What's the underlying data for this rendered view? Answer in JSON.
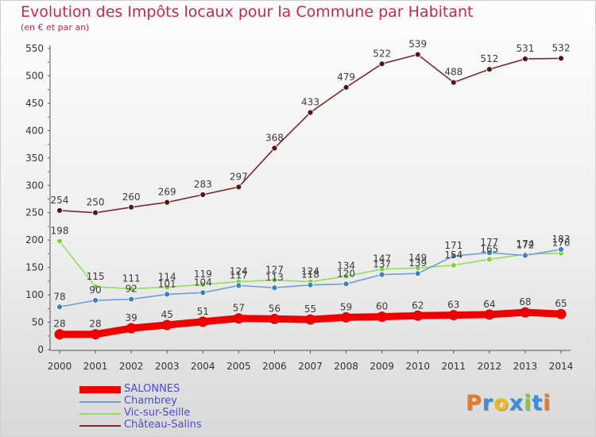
{
  "title": "Evolution des Impôts locaux pour la Commune par Habitant",
  "subtitle": "(en € et par an)",
  "logo": {
    "letters": [
      "P",
      "r",
      "o",
      "x",
      "i",
      "t",
      "i"
    ],
    "colors": [
      "#e8782a",
      "#3a8fd9",
      "#f0b81c",
      "#3a8fd9",
      "#8bc63e",
      "#3a8fd9",
      "#e8782a"
    ]
  },
  "chart_data": {
    "type": "line",
    "title": "Evolution des Impôts locaux pour la Commune par Habitant",
    "subtitle": "(en € et par an)",
    "xlabel": "",
    "ylabel": "",
    "x": [
      2000,
      2001,
      2002,
      2003,
      2004,
      2005,
      2006,
      2007,
      2008,
      2009,
      2010,
      2011,
      2012,
      2013,
      2014
    ],
    "ylim": [
      0,
      550
    ],
    "yticks": [
      0,
      50,
      100,
      150,
      200,
      250,
      300,
      350,
      400,
      450,
      500,
      550
    ],
    "grid": false,
    "legend_position": "bottom-left",
    "series": [
      {
        "name": "SALONNES",
        "color": "#ee0000",
        "point_color": "#ee0000",
        "values": [
          28,
          28,
          39,
          45,
          51,
          57,
          56,
          55,
          59,
          60,
          62,
          63,
          64,
          68,
          65
        ],
        "labels": [
          "28",
          "28",
          "39",
          "45",
          "51",
          "57",
          "56",
          "55",
          "59",
          "60",
          "62",
          "63",
          "64",
          "68",
          "65"
        ]
      },
      {
        "name": "Chambrey",
        "color": "#6aa0d6",
        "point_color": "#3f7fc4",
        "values": [
          78,
          90,
          92,
          101,
          104,
          117,
          113,
          118,
          120,
          137,
          139,
          171,
          177,
          172,
          183
        ],
        "labels": [
          "78",
          "90",
          "92",
          "101",
          "104",
          "117",
          "113",
          "118",
          "120",
          "137",
          "139",
          "171",
          "177",
          "172",
          "183"
        ]
      },
      {
        "name": "Vic-sur-Seille",
        "color": "#94dc5c",
        "point_color": "#82d13e",
        "values": [
          198,
          115,
          111,
          114,
          119,
          124,
          127,
          124,
          134,
          147,
          149,
          154,
          165,
          174,
          176
        ],
        "labels": [
          "198",
          "115",
          "111",
          "114",
          "119",
          "124",
          "127",
          "124",
          "134",
          "147",
          "149",
          "154",
          "165",
          "174",
          "176"
        ]
      },
      {
        "name": "Château-Salins",
        "color": "#7a2a2a",
        "point_color": "#5b1414",
        "values": [
          254,
          250,
          260,
          269,
          283,
          297,
          368,
          433,
          479,
          522,
          539,
          488,
          512,
          531,
          532
        ],
        "labels": [
          "254",
          "250",
          "260",
          "269",
          "283",
          "297",
          "368",
          "433",
          "479",
          "522",
          "539",
          "488",
          "512",
          "531",
          "532"
        ]
      }
    ]
  }
}
